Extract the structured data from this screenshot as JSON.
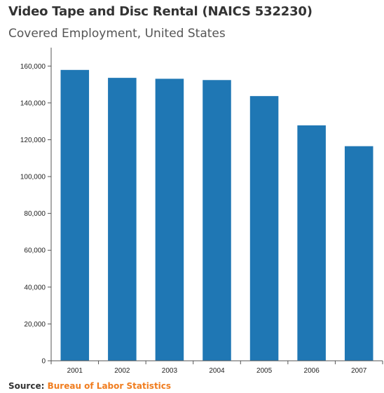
{
  "header": {
    "title": "Video Tape and Disc Rental (NAICS 532230)",
    "subtitle": "Covered Employment, United States"
  },
  "source": {
    "prefix": "Source:",
    "link_text": "Bureau of Labor Statistics"
  },
  "colors": {
    "bar": "#1f77b4",
    "axis": "#555555",
    "link": "#f07d1f"
  },
  "chart_data": {
    "type": "bar",
    "title": "Video Tape and Disc Rental (NAICS 532230)",
    "subtitle": "Covered Employment, United States",
    "xlabel": "",
    "ylabel": "",
    "categories": [
      "2001",
      "2002",
      "2003",
      "2004",
      "2005",
      "2006",
      "2007"
    ],
    "values": [
      157900,
      153600,
      153100,
      152400,
      143700,
      127800,
      116500
    ],
    "ylim": [
      0,
      170000
    ],
    "yticks": [
      0,
      20000,
      40000,
      60000,
      80000,
      100000,
      120000,
      140000,
      160000
    ],
    "ytick_labels": [
      "0",
      "20,000",
      "40,000",
      "60,000",
      "80,000",
      "100,000",
      "120,000",
      "140,000",
      "160,000"
    ],
    "grid": false,
    "legend": "none"
  }
}
